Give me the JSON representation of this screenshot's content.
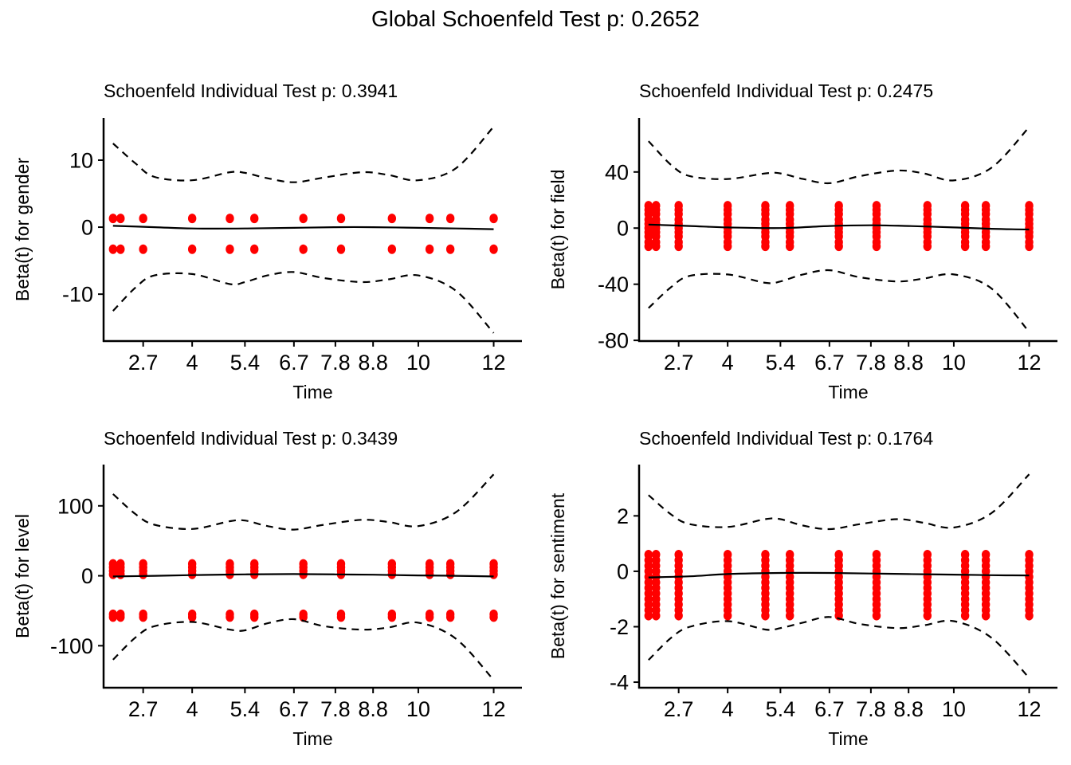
{
  "figure": {
    "title": "Global Schoenfeld Test p: 0.2652",
    "point_color": "#ff0000",
    "line_color": "#000000"
  },
  "chart_data": [
    {
      "type": "scatter",
      "title": "Schoenfeld Individual Test p: 0.3941",
      "xlabel": "Time",
      "ylabel": "Beta(t) for gender",
      "xlim": [
        1.65,
        12.75
      ],
      "ylim": [
        -17,
        16.3
      ],
      "x_ticks": [
        2.7,
        4,
        5.4,
        6.7,
        7.8,
        8.8,
        10,
        12
      ],
      "x_tick_labels": [
        "2.7",
        "4",
        "5.4",
        "6.7",
        "7.8",
        "8.8",
        "10",
        "12"
      ],
      "y_ticks": [
        10,
        0,
        -10
      ],
      "y_tick_labels": [
        "10",
        "0",
        "-10"
      ],
      "event_times": [
        1.9,
        2.1,
        2.7,
        4.0,
        5.0,
        5.65,
        6.95,
        7.95,
        9.3,
        10.3,
        10.85,
        12.0
      ],
      "residual_values": [
        1.3,
        -3.3
      ],
      "fit": {
        "x": [
          1.9,
          3.0,
          4.0,
          5.4,
          6.7,
          7.8,
          8.8,
          10.0,
          11.0,
          12.0
        ],
        "y": [
          0.2,
          0.0,
          -0.2,
          -0.2,
          -0.1,
          0.0,
          0.0,
          -0.1,
          -0.2,
          -0.3
        ]
      },
      "upper_ci": {
        "x": [
          1.9,
          2.5,
          3.0,
          4.0,
          5.0,
          5.4,
          6.0,
          6.7,
          7.5,
          8.5,
          9.2,
          10.0,
          11.0,
          12.0
        ],
        "y": [
          12.5,
          9.5,
          7.5,
          7.0,
          8.2,
          8.1,
          7.3,
          6.7,
          7.4,
          8.2,
          7.8,
          7.0,
          8.8,
          15.0
        ]
      },
      "lower_ci": {
        "x": [
          1.9,
          2.5,
          3.0,
          4.0,
          5.0,
          5.4,
          6.0,
          6.7,
          7.5,
          8.5,
          9.2,
          10.0,
          11.0,
          12.0
        ],
        "y": [
          -12.5,
          -9.0,
          -7.2,
          -7.0,
          -8.5,
          -8.2,
          -7.2,
          -6.7,
          -7.6,
          -8.2,
          -7.8,
          -7.2,
          -9.5,
          -15.8
        ]
      }
    },
    {
      "type": "scatter",
      "title": "Schoenfeld Individual Test p: 0.2475",
      "xlabel": "Time",
      "ylabel": "Beta(t) for field",
      "xlim": [
        1.65,
        12.75
      ],
      "ylim": [
        -80.5,
        78.5
      ],
      "x_ticks": [
        2.7,
        4,
        5.4,
        6.7,
        7.8,
        8.8,
        10,
        12
      ],
      "x_tick_labels": [
        "2.7",
        "4",
        "5.4",
        "6.7",
        "7.8",
        "8.8",
        "10",
        "12"
      ],
      "y_ticks": [
        40,
        0,
        -40,
        -80
      ],
      "y_tick_labels": [
        "40",
        "0",
        "-40",
        "-80"
      ],
      "event_times": [
        1.9,
        2.1,
        2.7,
        4.0,
        5.0,
        5.65,
        6.95,
        7.95,
        9.3,
        10.3,
        10.85,
        12.0
      ],
      "residual_values": [
        16,
        13,
        10,
        6,
        3,
        0,
        -3,
        -6,
        -10,
        -13
      ],
      "fit": {
        "x": [
          1.9,
          3.0,
          4.0,
          5.4,
          6.7,
          7.8,
          8.8,
          10.0,
          11.0,
          12.0
        ],
        "y": [
          2.5,
          1.5,
          0.5,
          0.0,
          1.5,
          2.0,
          1.5,
          0.5,
          -0.5,
          -1.0
        ]
      },
      "upper_ci": {
        "x": [
          1.9,
          2.5,
          3.0,
          4.0,
          5.0,
          5.4,
          6.0,
          6.7,
          7.5,
          8.5,
          9.2,
          10.0,
          11.0,
          12.0
        ],
        "y": [
          62,
          45,
          37,
          35,
          39,
          39,
          35,
          32,
          37,
          41,
          39,
          34,
          43,
          72
        ]
      },
      "lower_ci": {
        "x": [
          1.9,
          2.5,
          3.0,
          4.0,
          5.0,
          5.4,
          6.0,
          6.7,
          7.5,
          8.5,
          9.2,
          10.0,
          11.0,
          12.0
        ],
        "y": [
          -57,
          -42,
          -34,
          -33,
          -39,
          -38,
          -33,
          -30,
          -35,
          -38,
          -36,
          -33,
          -43,
          -74
        ]
      }
    },
    {
      "type": "scatter",
      "title": "Schoenfeld Individual Test p: 0.3439",
      "xlabel": "Time",
      "ylabel": "Beta(t) for level",
      "xlim": [
        1.65,
        12.75
      ],
      "ylim": [
        -160,
        159
      ],
      "x_ticks": [
        2.7,
        4,
        5.4,
        6.7,
        7.8,
        8.8,
        10,
        12
      ],
      "x_tick_labels": [
        "2.7",
        "4",
        "5.4",
        "6.7",
        "7.8",
        "8.8",
        "10",
        "12"
      ],
      "y_ticks": [
        100,
        0,
        -100
      ],
      "y_tick_labels": [
        "100",
        "0",
        "-100"
      ],
      "event_times": [
        1.9,
        2.1,
        2.7,
        4.0,
        5.0,
        5.65,
        6.95,
        7.95,
        9.3,
        10.3,
        10.85,
        12.0
      ],
      "residual_values": [
        17,
        12,
        7,
        2,
        -55,
        -59
      ],
      "fit": {
        "x": [
          1.9,
          3.0,
          4.0,
          5.4,
          6.7,
          7.8,
          8.8,
          10.0,
          11.0,
          12.0
        ],
        "y": [
          -1,
          0,
          1,
          2,
          2.5,
          2,
          1.5,
          0.5,
          0,
          -1
        ]
      },
      "upper_ci": {
        "x": [
          1.9,
          2.5,
          3.0,
          4.0,
          5.0,
          5.4,
          6.0,
          6.7,
          7.5,
          8.5,
          9.2,
          10.0,
          11.0,
          12.0
        ],
        "y": [
          117,
          88,
          73,
          67,
          78,
          79,
          71,
          66,
          73,
          80,
          77,
          71,
          91,
          145
        ]
      },
      "lower_ci": {
        "x": [
          1.9,
          2.5,
          3.0,
          4.0,
          5.0,
          5.4,
          6.0,
          6.7,
          7.5,
          8.5,
          9.2,
          10.0,
          11.0,
          12.0
        ],
        "y": [
          -120,
          -88,
          -72,
          -66,
          -77,
          -78,
          -68,
          -62,
          -72,
          -77,
          -74,
          -67,
          -90,
          -149
        ]
      }
    },
    {
      "type": "scatter",
      "title": "Schoenfeld Individual Test p: 0.1764",
      "xlabel": "Time",
      "ylabel": "Beta(t) for sentiment",
      "xlim": [
        1.65,
        12.75
      ],
      "ylim": [
        -4.2,
        3.85
      ],
      "x_ticks": [
        2.7,
        4,
        5.4,
        6.7,
        7.8,
        8.8,
        10,
        12
      ],
      "x_tick_labels": [
        "2.7",
        "4",
        "5.4",
        "6.7",
        "7.8",
        "8.8",
        "10",
        "12"
      ],
      "y_ticks": [
        2,
        0,
        -2,
        -4
      ],
      "y_tick_labels": [
        "2",
        "0",
        "-2",
        "-4"
      ],
      "event_times": [
        1.9,
        2.1,
        2.7,
        4.0,
        5.0,
        5.65,
        6.95,
        7.95,
        9.3,
        10.3,
        10.85,
        12.0
      ],
      "residual_values": [
        0.6,
        0.4,
        0.2,
        0.0,
        -0.2,
        -0.4,
        -0.6,
        -0.8,
        -1.0,
        -1.2,
        -1.4,
        -1.6
      ],
      "fit": {
        "x": [
          1.9,
          3.0,
          4.0,
          5.4,
          6.7,
          7.8,
          8.8,
          10.0,
          11.0,
          12.0
        ],
        "y": [
          -0.22,
          -0.18,
          -0.1,
          -0.06,
          -0.06,
          -0.08,
          -0.1,
          -0.12,
          -0.14,
          -0.15
        ]
      },
      "upper_ci": {
        "x": [
          1.9,
          2.5,
          3.0,
          4.0,
          5.0,
          5.4,
          6.0,
          6.7,
          7.5,
          8.5,
          9.2,
          10.0,
          11.0,
          12.0
        ],
        "y": [
          2.75,
          2.05,
          1.7,
          1.6,
          1.88,
          1.88,
          1.65,
          1.52,
          1.7,
          1.88,
          1.75,
          1.58,
          2.1,
          3.5
        ]
      },
      "lower_ci": {
        "x": [
          1.9,
          2.5,
          3.0,
          4.0,
          5.0,
          5.4,
          6.0,
          6.7,
          7.5,
          8.5,
          9.2,
          10.0,
          11.0,
          12.0
        ],
        "y": [
          -3.2,
          -2.4,
          -2.0,
          -1.8,
          -2.1,
          -2.05,
          -1.85,
          -1.65,
          -1.9,
          -2.05,
          -1.95,
          -1.8,
          -2.4,
          -3.85
        ]
      }
    }
  ]
}
